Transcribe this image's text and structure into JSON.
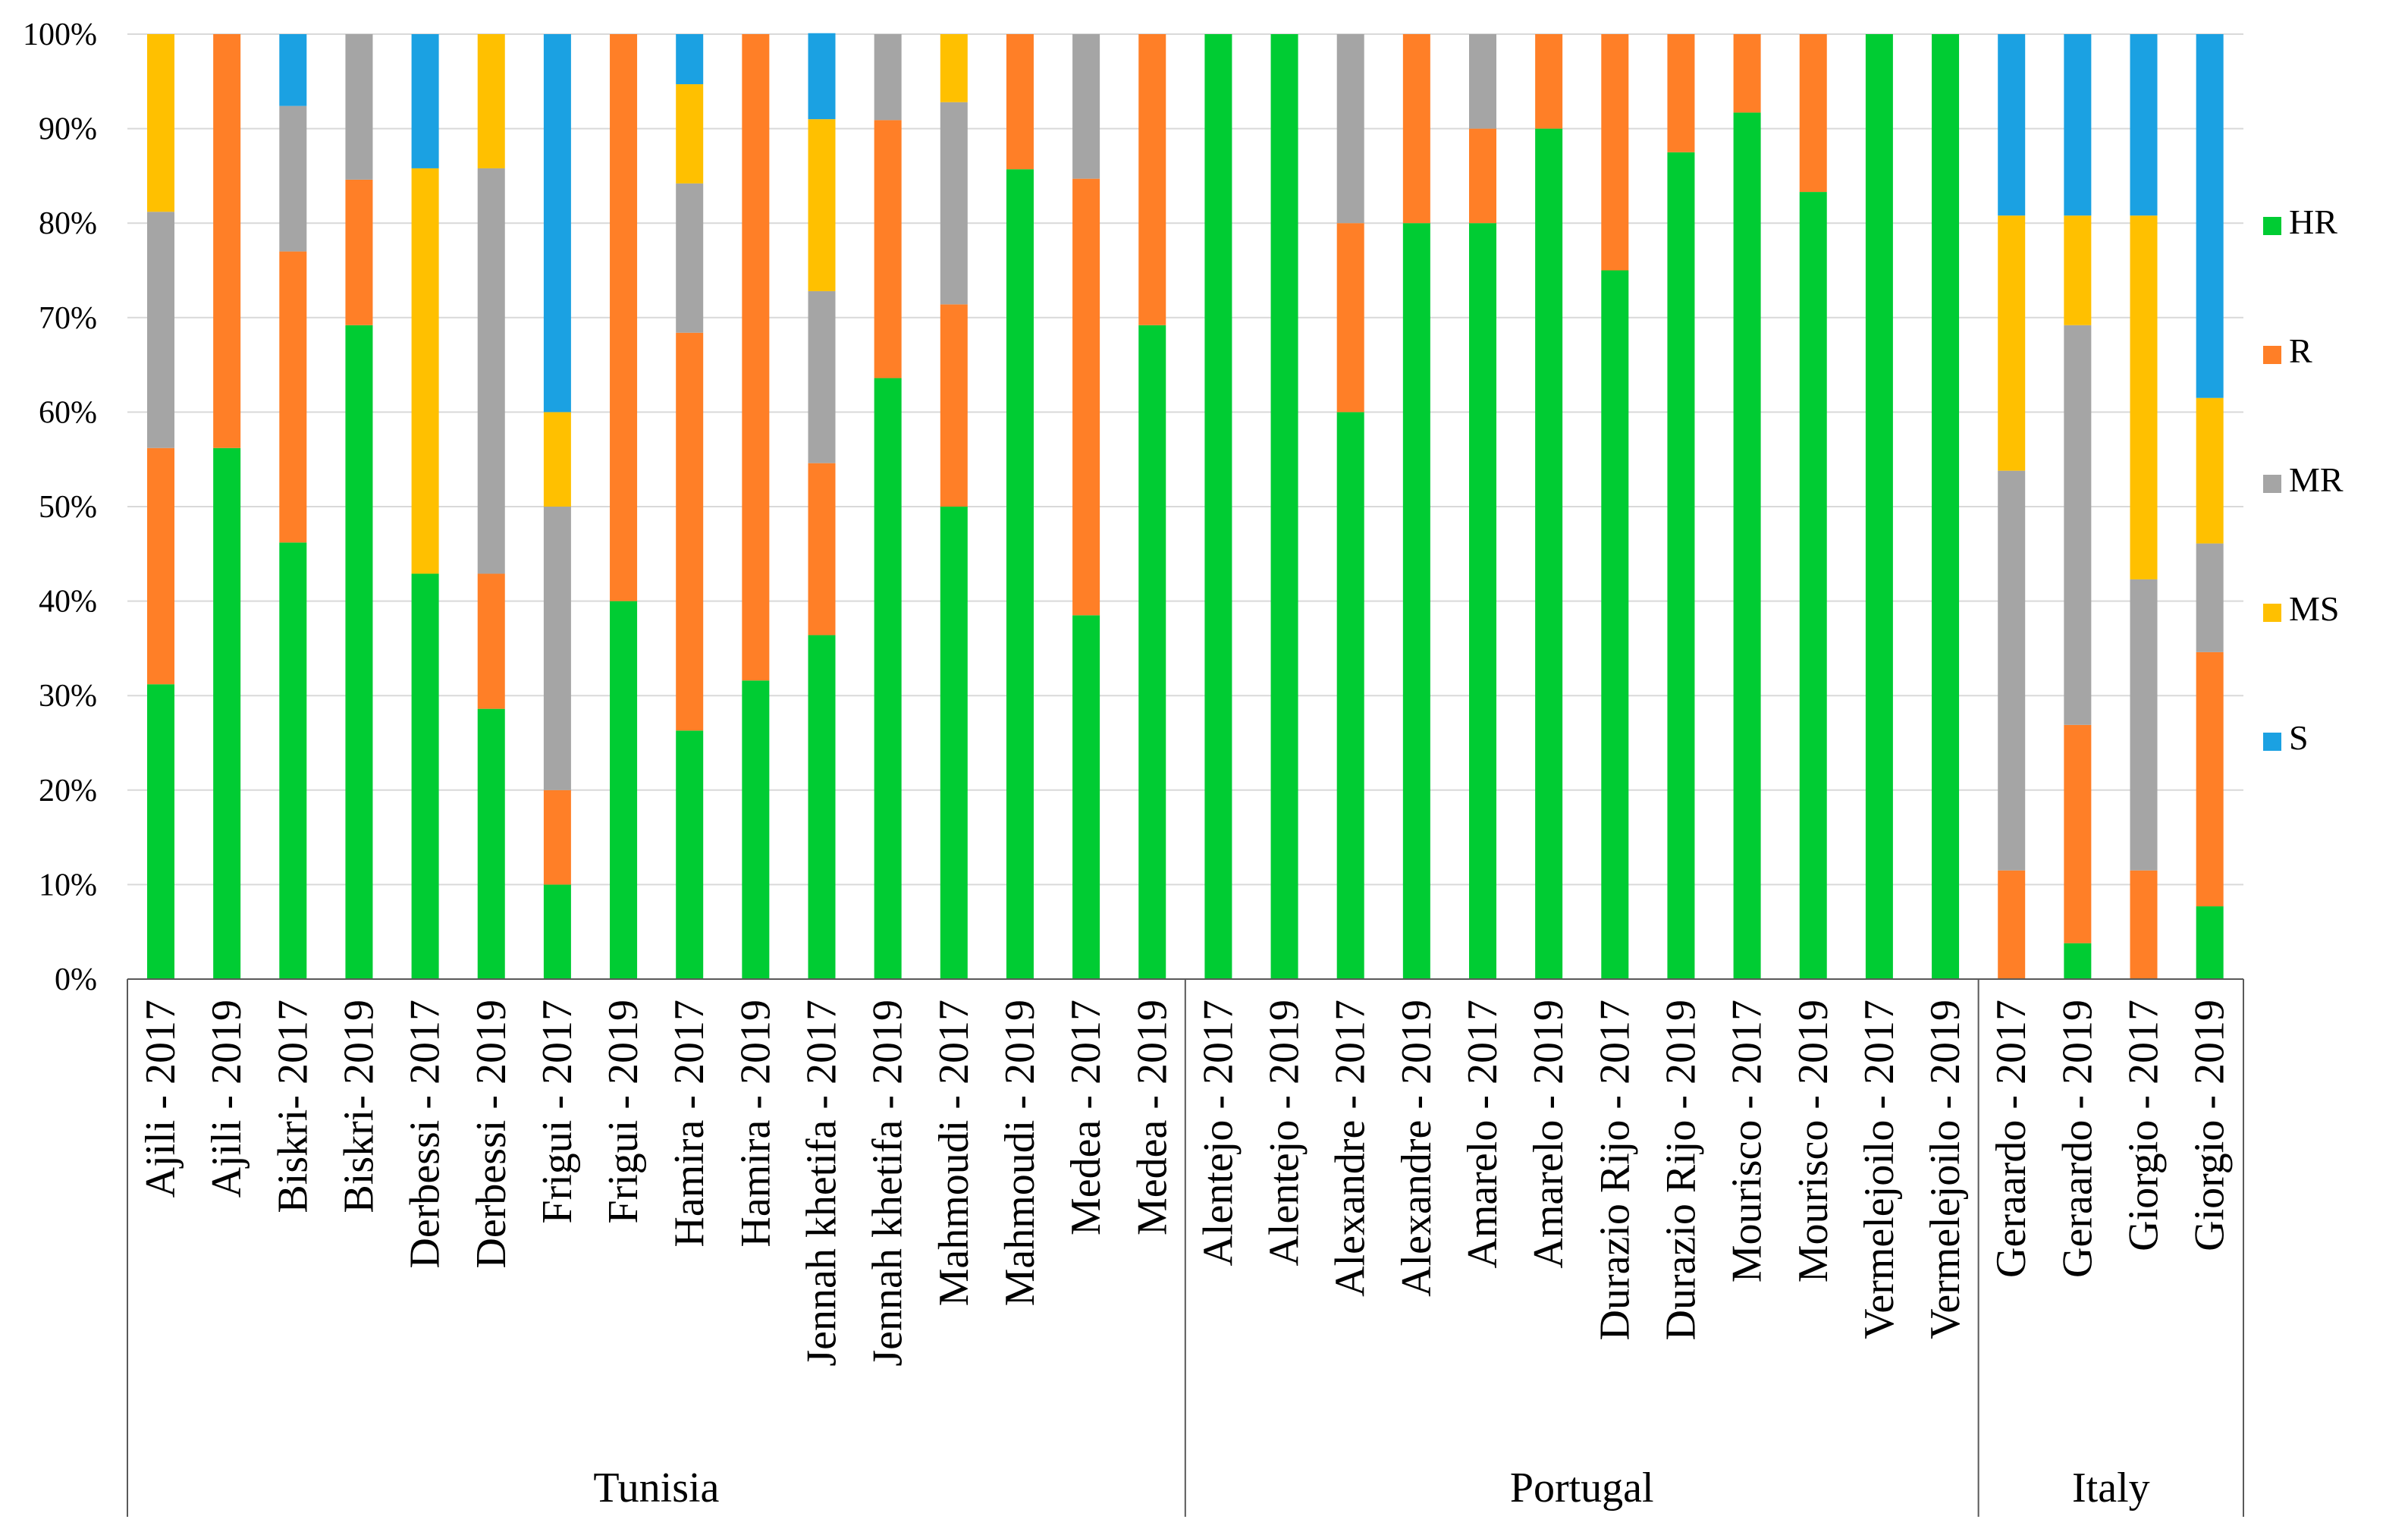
{
  "chart_data": {
    "type": "bar",
    "stacked": true,
    "percent": true,
    "title": "",
    "xlabel": "",
    "ylabel": "",
    "ylim": [
      0,
      100
    ],
    "yticks": [
      "0%",
      "10%",
      "20%",
      "30%",
      "40%",
      "50%",
      "60%",
      "70%",
      "80%",
      "90%",
      "100%"
    ],
    "grid": true,
    "legend_position": "right",
    "categories": [
      "Ajili - 2017",
      "Ajili - 2019",
      "Biskri- 2017",
      "Biskri- 2019",
      "Derbessi - 2017",
      "Derbessi - 2019",
      "Frigui - 2017",
      "Frigui - 2019",
      "Hamira - 2017",
      "Hamira - 2019",
      "Jennah khetifa - 2017",
      "Jennah khetifa - 2019",
      "Mahmoudi - 2017",
      "Mahmoudi - 2019",
      "Medea - 2017",
      "Medea - 2019",
      "Alentejo - 2017",
      "Alentejo - 2019",
      "Alexandre - 2017",
      "Alexandre - 2019",
      "Amarelo - 2017",
      "Amarelo - 2019",
      "Durazio Rijo - 2017",
      "Durazio Rijo - 2019",
      "Mourisco - 2017",
      "Mourisco - 2019",
      "Vermelejoilo - 2017",
      "Vermelejoilo - 2019",
      "Geraardo - 2017",
      "Geraardo - 2019",
      "Giorgio - 2017",
      "Giorgio - 2019"
    ],
    "groups": [
      {
        "name": "Tunisia",
        "start": 0,
        "end": 15
      },
      {
        "name": "Portugal",
        "start": 16,
        "end": 27
      },
      {
        "name": "Italy",
        "start": 28,
        "end": 31
      }
    ],
    "series": [
      {
        "name": "HR",
        "color": "#00cc33",
        "values": [
          31.2,
          56.2,
          46.2,
          69.2,
          42.9,
          28.6,
          10,
          40,
          26.3,
          31.6,
          36.4,
          63.6,
          50,
          85.7,
          38.5,
          69.2,
          100,
          100,
          60,
          80,
          80,
          90,
          75,
          87.5,
          91.7,
          83.3,
          100,
          100,
          0,
          3.8,
          0,
          7.7
        ]
      },
      {
        "name": "R",
        "color": "#ff7f27",
        "values": [
          25,
          43.8,
          30.8,
          15.4,
          0,
          14.3,
          10,
          60,
          42.1,
          68.4,
          18.2,
          27.3,
          21.4,
          14.3,
          46.2,
          30.8,
          0,
          0,
          20,
          20,
          10,
          10,
          25,
          12.5,
          8.3,
          16.7,
          0,
          0,
          11.5,
          23.1,
          11.5,
          26.9
        ]
      },
      {
        "name": "MR",
        "color": "#a5a5a5",
        "values": [
          25,
          0,
          15.4,
          15.4,
          0,
          42.9,
          30,
          0,
          15.8,
          0,
          18.2,
          9.1,
          21.4,
          0,
          15.3,
          0,
          0,
          0,
          20,
          0,
          10,
          0,
          0,
          0,
          0,
          0,
          0,
          0,
          42.3,
          42.3,
          30.8,
          11.5
        ]
      },
      {
        "name": "MS",
        "color": "#ffc000",
        "values": [
          18.8,
          0,
          0,
          0,
          42.9,
          14.2,
          10,
          0,
          10.5,
          0,
          18.2,
          0,
          7.2,
          0,
          0,
          0,
          0,
          0,
          0,
          0,
          0,
          0,
          0,
          0,
          0,
          0,
          0,
          0,
          27,
          11.6,
          38.5,
          15.4
        ]
      },
      {
        "name": "S",
        "color": "#1ba1e2",
        "values": [
          0,
          0,
          7.6,
          0,
          14.2,
          0,
          40,
          0,
          5.3,
          0,
          9.1,
          0,
          0,
          0,
          0,
          0,
          0,
          0,
          0,
          0,
          0,
          0,
          0,
          0,
          0,
          0,
          0,
          0,
          19.2,
          19.2,
          19.2,
          38.5
        ]
      }
    ],
    "legend_order": [
      "HR",
      "R",
      "MR",
      "MS",
      "S"
    ]
  }
}
